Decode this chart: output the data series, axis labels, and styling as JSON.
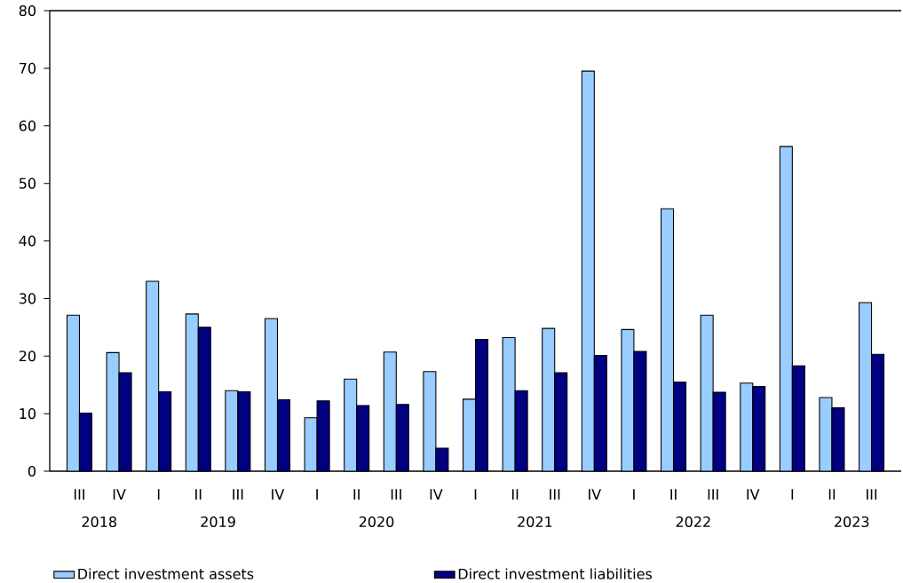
{
  "chart_data": {
    "type": "bar",
    "categories": [
      "III",
      "IV",
      "I",
      "II",
      "III",
      "IV",
      "I",
      "II",
      "III",
      "IV",
      "I",
      "II",
      "III",
      "IV",
      "I",
      "II",
      "III",
      "IV",
      "I",
      "II",
      "III"
    ],
    "series": [
      {
        "name": "Direct investment assets",
        "color": "#99ccff",
        "values": [
          27.1,
          20.6,
          33.0,
          27.3,
          14.0,
          26.5,
          9.3,
          16.0,
          20.7,
          17.3,
          12.5,
          23.2,
          24.8,
          69.5,
          24.6,
          45.6,
          27.1,
          15.3,
          56.4,
          12.8,
          29.3
        ]
      },
      {
        "name": "Direct investment liabilities",
        "color": "#000080",
        "values": [
          10.1,
          17.1,
          13.8,
          25.0,
          13.8,
          12.4,
          12.2,
          11.4,
          11.6,
          4.0,
          22.9,
          14.0,
          17.1,
          20.1,
          20.8,
          15.5,
          13.7,
          14.7,
          18.3,
          11.0,
          20.3
        ]
      }
    ],
    "annotations": [
      "2018",
      "2019",
      "2020",
      "2021",
      "2022",
      "2023"
    ],
    "ylim": [
      0,
      80
    ],
    "yticks": [
      0,
      10,
      20,
      30,
      40,
      50,
      60,
      70,
      80
    ],
    "grid": false,
    "legend": "bottom"
  }
}
